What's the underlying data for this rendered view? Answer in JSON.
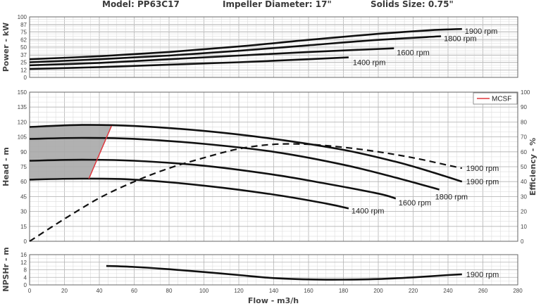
{
  "header": {
    "model": "Model: PP63C17",
    "impeller": "Impeller Diameter: 17\"",
    "solids": "Solids Size: 0.75\""
  },
  "chart_data": [
    {
      "type": "line",
      "panel": "power",
      "ylabel": "Power - kW",
      "xlim": [
        0,
        280
      ],
      "ylim": [
        0,
        100
      ],
      "y_ticks": [
        0,
        12,
        25,
        37,
        50,
        62,
        75,
        87,
        100
      ],
      "grid": true,
      "series": [
        {
          "name": "1900 rpm",
          "x": [
            0,
            40,
            80,
            120,
            160,
            200,
            230,
            248
          ],
          "y": [
            30,
            35,
            42,
            51,
            62,
            72,
            78,
            80
          ]
        },
        {
          "name": "1800 rpm",
          "x": [
            0,
            40,
            80,
            120,
            160,
            200,
            236
          ],
          "y": [
            25,
            30,
            36,
            44,
            53,
            62,
            68
          ]
        },
        {
          "name": "1600 rpm",
          "x": [
            0,
            40,
            80,
            120,
            160,
            209
          ],
          "y": [
            20,
            24,
            30,
            36,
            42,
            48
          ]
        },
        {
          "name": "1400 rpm",
          "x": [
            0,
            40,
            80,
            120,
            160,
            183
          ],
          "y": [
            14,
            17,
            21,
            25,
            30,
            33
          ]
        }
      ]
    },
    {
      "type": "line",
      "panel": "head",
      "ylabel": "Head - m",
      "y2label": "Efficiency - %",
      "xlim": [
        0,
        280
      ],
      "ylim": [
        0,
        150
      ],
      "y2lim": [
        0,
        100
      ],
      "y_ticks": [
        0,
        15,
        30,
        45,
        60,
        75,
        90,
        105,
        120,
        135,
        150
      ],
      "y2_ticks": [
        0,
        10,
        20,
        30,
        40,
        50,
        60,
        70,
        80,
        90,
        100
      ],
      "grid": true,
      "legend": {
        "position": "top-right",
        "entries": [
          "MCSF"
        ]
      },
      "series": [
        {
          "name": "1900 rpm",
          "x": [
            0,
            30,
            60,
            100,
            140,
            180,
            210,
            230,
            248
          ],
          "y": [
            115,
            117,
            116,
            111,
            103,
            92,
            80,
            70,
            60
          ]
        },
        {
          "name": "1800 rpm",
          "x": [
            0,
            30,
            60,
            100,
            140,
            180,
            210,
            235
          ],
          "y": [
            103,
            104,
            103,
            98,
            90,
            77,
            64,
            52
          ]
        },
        {
          "name": "1600 rpm",
          "x": [
            0,
            30,
            60,
            100,
            140,
            170,
            200,
            210
          ],
          "y": [
            81,
            82,
            81,
            76,
            67,
            58,
            48,
            43
          ]
        },
        {
          "name": "1400 rpm",
          "x": [
            0,
            30,
            60,
            100,
            140,
            170,
            183
          ],
          "y": [
            62,
            63,
            62,
            56,
            47,
            38,
            33
          ]
        },
        {
          "name": "MCSF",
          "x": [
            34,
            47
          ],
          "y": [
            63,
            116
          ]
        }
      ],
      "efficiency_series": {
        "name": "1900 rpm",
        "x": [
          0,
          20,
          40,
          60,
          80,
          100,
          120,
          140,
          160,
          180,
          200,
          220,
          240,
          248
        ],
        "y": [
          0,
          15,
          29,
          40,
          49,
          56,
          62,
          65,
          65,
          63,
          60,
          56,
          51,
          49
        ]
      },
      "curve_labels": [
        "1900 rpm",
        "1900 rpm",
        "1800 rpm",
        "1600 rpm",
        "1400 rpm"
      ]
    },
    {
      "type": "line",
      "panel": "npshr",
      "ylabel": "NPSHr - m",
      "xlabel": "Flow - m3/h",
      "xlim": [
        0,
        280
      ],
      "ylim": [
        0,
        16
      ],
      "x_ticks": [
        0,
        20,
        40,
        60,
        80,
        100,
        120,
        140,
        160,
        180,
        200,
        220,
        240,
        260,
        280
      ],
      "y_ticks": [
        0,
        4,
        8,
        12,
        16
      ],
      "grid": true,
      "series": [
        {
          "name": "1900 rpm",
          "x": [
            44,
            60,
            80,
            100,
            120,
            140,
            160,
            180,
            200,
            220,
            240,
            248
          ],
          "y": [
            10,
            9.5,
            8.3,
            6.8,
            5.2,
            3.6,
            2.9,
            2.8,
            3.1,
            4.0,
            5.2,
            5.6
          ]
        }
      ]
    }
  ]
}
